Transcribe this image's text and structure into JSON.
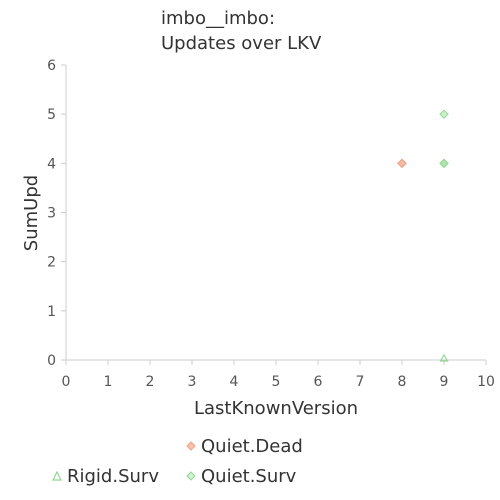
{
  "chart_data": {
    "type": "scatter",
    "title_lines": [
      "imbo__imbo:",
      "Updates over LKV"
    ],
    "xlabel": "LastKnownVersion",
    "ylabel": "SumUpd",
    "xlim": [
      0,
      10
    ],
    "ylim": [
      0,
      6
    ],
    "x_ticks": [
      "0",
      "1",
      "2",
      "3",
      "4",
      "5",
      "6",
      "7",
      "8",
      "9",
      "10"
    ],
    "y_ticks": [
      "0",
      "1",
      "2",
      "3",
      "4",
      "5",
      "6"
    ],
    "grid": false,
    "series": [
      {
        "name": "Quiet.Dead",
        "marker": "diamond",
        "color": "#f0a080",
        "points": [
          [
            8,
            4
          ],
          [
            8,
            4
          ]
        ]
      },
      {
        "name": "Rigid.Surv",
        "marker": "triangle",
        "color": "#90d890",
        "points": [
          [
            9,
            0
          ]
        ]
      },
      {
        "name": "Quiet.Surv",
        "marker": "diamond",
        "color": "#90d890",
        "points": [
          [
            9,
            5
          ],
          [
            9,
            4
          ],
          [
            9,
            4
          ]
        ]
      }
    ],
    "legend": [
      "Quiet.Dead",
      "Rigid.Surv",
      "Quiet.Surv"
    ]
  }
}
